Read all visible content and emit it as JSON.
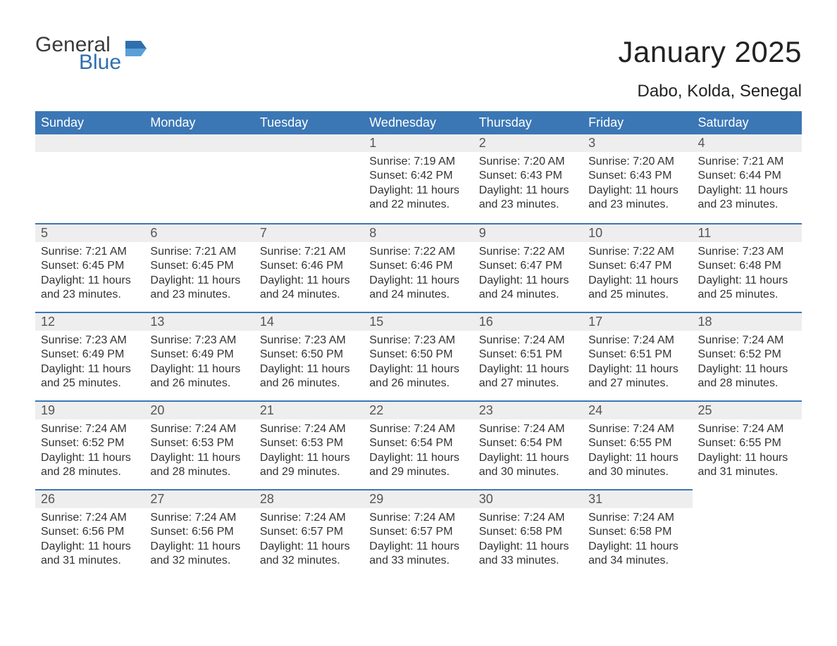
{
  "logo": {
    "general": "General",
    "blue": "Blue",
    "icon_color": "#2f6fae"
  },
  "title": "January 2025",
  "location": "Dabo, Kolda, Senegal",
  "colors": {
    "header_bg": "#3b77b5",
    "header_text": "#ffffff",
    "daynum_bg": "#eeeeee",
    "daynum_border": "#3b77b5",
    "body_text": "#333333",
    "page_bg": "#ffffff"
  },
  "font": {
    "family": "Arial",
    "dayheader_size_pt": 14,
    "body_size_pt": 12,
    "title_size_pt": 32,
    "location_size_pt": 18
  },
  "weekdays": [
    "Sunday",
    "Monday",
    "Tuesday",
    "Wednesday",
    "Thursday",
    "Friday",
    "Saturday"
  ],
  "weeks": [
    [
      null,
      null,
      null,
      {
        "n": "1",
        "sunrise": "7:19 AM",
        "sunset": "6:42 PM",
        "daylight": "11 hours and 22 minutes."
      },
      {
        "n": "2",
        "sunrise": "7:20 AM",
        "sunset": "6:43 PM",
        "daylight": "11 hours and 23 minutes."
      },
      {
        "n": "3",
        "sunrise": "7:20 AM",
        "sunset": "6:43 PM",
        "daylight": "11 hours and 23 minutes."
      },
      {
        "n": "4",
        "sunrise": "7:21 AM",
        "sunset": "6:44 PM",
        "daylight": "11 hours and 23 minutes."
      }
    ],
    [
      {
        "n": "5",
        "sunrise": "7:21 AM",
        "sunset": "6:45 PM",
        "daylight": "11 hours and 23 minutes."
      },
      {
        "n": "6",
        "sunrise": "7:21 AM",
        "sunset": "6:45 PM",
        "daylight": "11 hours and 23 minutes."
      },
      {
        "n": "7",
        "sunrise": "7:21 AM",
        "sunset": "6:46 PM",
        "daylight": "11 hours and 24 minutes."
      },
      {
        "n": "8",
        "sunrise": "7:22 AM",
        "sunset": "6:46 PM",
        "daylight": "11 hours and 24 minutes."
      },
      {
        "n": "9",
        "sunrise": "7:22 AM",
        "sunset": "6:47 PM",
        "daylight": "11 hours and 24 minutes."
      },
      {
        "n": "10",
        "sunrise": "7:22 AM",
        "sunset": "6:47 PM",
        "daylight": "11 hours and 25 minutes."
      },
      {
        "n": "11",
        "sunrise": "7:23 AM",
        "sunset": "6:48 PM",
        "daylight": "11 hours and 25 minutes."
      }
    ],
    [
      {
        "n": "12",
        "sunrise": "7:23 AM",
        "sunset": "6:49 PM",
        "daylight": "11 hours and 25 minutes."
      },
      {
        "n": "13",
        "sunrise": "7:23 AM",
        "sunset": "6:49 PM",
        "daylight": "11 hours and 26 minutes."
      },
      {
        "n": "14",
        "sunrise": "7:23 AM",
        "sunset": "6:50 PM",
        "daylight": "11 hours and 26 minutes."
      },
      {
        "n": "15",
        "sunrise": "7:23 AM",
        "sunset": "6:50 PM",
        "daylight": "11 hours and 26 minutes."
      },
      {
        "n": "16",
        "sunrise": "7:24 AM",
        "sunset": "6:51 PM",
        "daylight": "11 hours and 27 minutes."
      },
      {
        "n": "17",
        "sunrise": "7:24 AM",
        "sunset": "6:51 PM",
        "daylight": "11 hours and 27 minutes."
      },
      {
        "n": "18",
        "sunrise": "7:24 AM",
        "sunset": "6:52 PM",
        "daylight": "11 hours and 28 minutes."
      }
    ],
    [
      {
        "n": "19",
        "sunrise": "7:24 AM",
        "sunset": "6:52 PM",
        "daylight": "11 hours and 28 minutes."
      },
      {
        "n": "20",
        "sunrise": "7:24 AM",
        "sunset": "6:53 PM",
        "daylight": "11 hours and 28 minutes."
      },
      {
        "n": "21",
        "sunrise": "7:24 AM",
        "sunset": "6:53 PM",
        "daylight": "11 hours and 29 minutes."
      },
      {
        "n": "22",
        "sunrise": "7:24 AM",
        "sunset": "6:54 PM",
        "daylight": "11 hours and 29 minutes."
      },
      {
        "n": "23",
        "sunrise": "7:24 AM",
        "sunset": "6:54 PM",
        "daylight": "11 hours and 30 minutes."
      },
      {
        "n": "24",
        "sunrise": "7:24 AM",
        "sunset": "6:55 PM",
        "daylight": "11 hours and 30 minutes."
      },
      {
        "n": "25",
        "sunrise": "7:24 AM",
        "sunset": "6:55 PM",
        "daylight": "11 hours and 31 minutes."
      }
    ],
    [
      {
        "n": "26",
        "sunrise": "7:24 AM",
        "sunset": "6:56 PM",
        "daylight": "11 hours and 31 minutes."
      },
      {
        "n": "27",
        "sunrise": "7:24 AM",
        "sunset": "6:56 PM",
        "daylight": "11 hours and 32 minutes."
      },
      {
        "n": "28",
        "sunrise": "7:24 AM",
        "sunset": "6:57 PM",
        "daylight": "11 hours and 32 minutes."
      },
      {
        "n": "29",
        "sunrise": "7:24 AM",
        "sunset": "6:57 PM",
        "daylight": "11 hours and 33 minutes."
      },
      {
        "n": "30",
        "sunrise": "7:24 AM",
        "sunset": "6:58 PM",
        "daylight": "11 hours and 33 minutes."
      },
      {
        "n": "31",
        "sunrise": "7:24 AM",
        "sunset": "6:58 PM",
        "daylight": "11 hours and 34 minutes."
      },
      null
    ]
  ],
  "labels": {
    "sunrise": "Sunrise:",
    "sunset": "Sunset:",
    "daylight": "Daylight:"
  }
}
